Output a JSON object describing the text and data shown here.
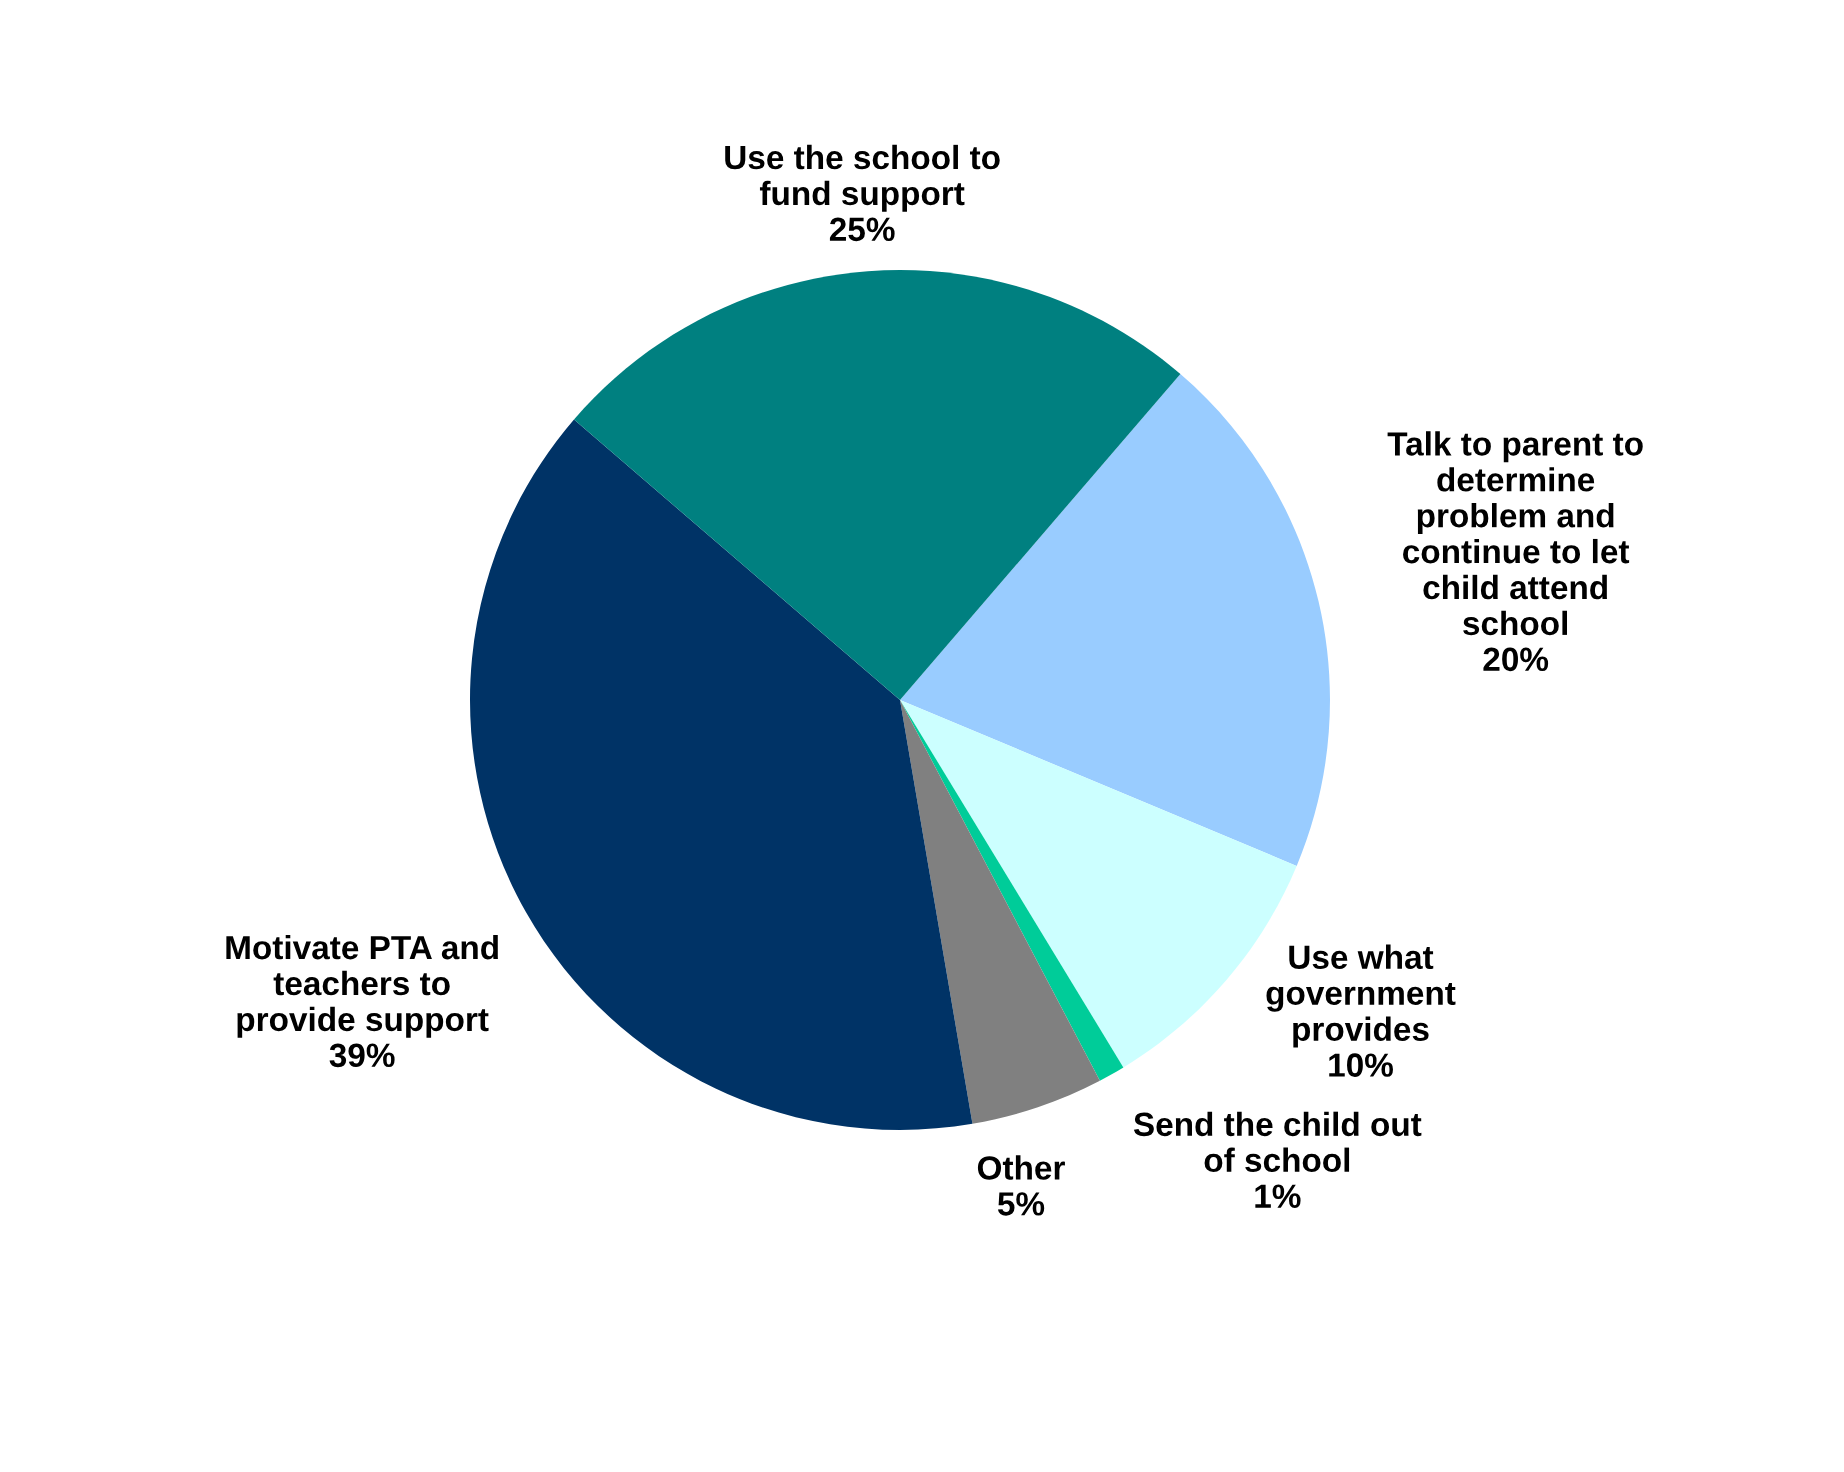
{
  "chart_data": {
    "type": "pie",
    "categories": [
      "Talk to parent to\ndetermine\nproblem and\ncontinue to let\nchild attend\nschool",
      "Use what\ngovernment\nprovides",
      "Send the child out\nof school",
      "Other",
      "Motivate PTA and\nteachers to\nprovide support",
      "Use the school to\nfund support"
    ],
    "values": [
      20,
      10,
      1,
      5,
      39,
      25
    ],
    "colors": [
      "#99ccff",
      "#ccffff",
      "#00cc99",
      "#808080",
      "#003366",
      "#008080"
    ],
    "value_labels": [
      "20%",
      "10%",
      "1%",
      "5%",
      "39%",
      "25%"
    ]
  }
}
